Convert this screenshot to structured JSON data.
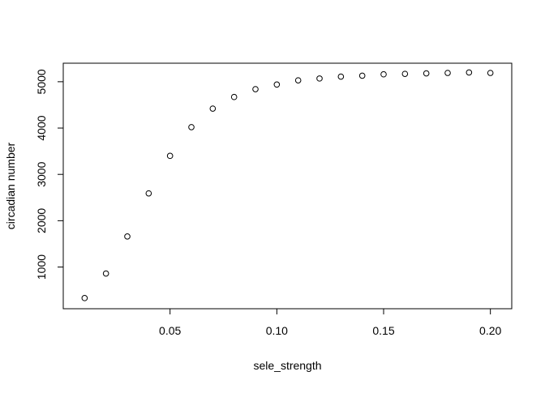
{
  "chart_data": {
    "type": "scatter",
    "title": "",
    "xlabel": "sele_strength",
    "ylabel": "circadian number",
    "xlim": [
      0.0,
      0.21
    ],
    "ylim": [
      100,
      5400
    ],
    "grid": false,
    "legend": "none",
    "marker": "open-circle",
    "colors": {
      "points": "#000000",
      "axes": "#000000",
      "background": "#ffffff"
    },
    "x_ticks": [
      0.05,
      0.1,
      0.15,
      0.2
    ],
    "x_tick_labels": [
      "0.05",
      "0.10",
      "0.15",
      "0.20"
    ],
    "y_ticks": [
      1000,
      2000,
      3000,
      4000,
      5000
    ],
    "y_tick_labels": [
      "1000",
      "2000",
      "3000",
      "4000",
      "5000"
    ],
    "series": [
      {
        "x": [
          0.01,
          0.02,
          0.03,
          0.04,
          0.05,
          0.06,
          0.07,
          0.08,
          0.09,
          0.1,
          0.11,
          0.12,
          0.13,
          0.14,
          0.15,
          0.16,
          0.17,
          0.18,
          0.19,
          0.2
        ],
        "y": [
          330,
          860,
          1660,
          2590,
          3400,
          4020,
          4420,
          4670,
          4840,
          4940,
          5030,
          5070,
          5110,
          5130,
          5160,
          5170,
          5180,
          5190,
          5200,
          5190
        ]
      }
    ]
  }
}
